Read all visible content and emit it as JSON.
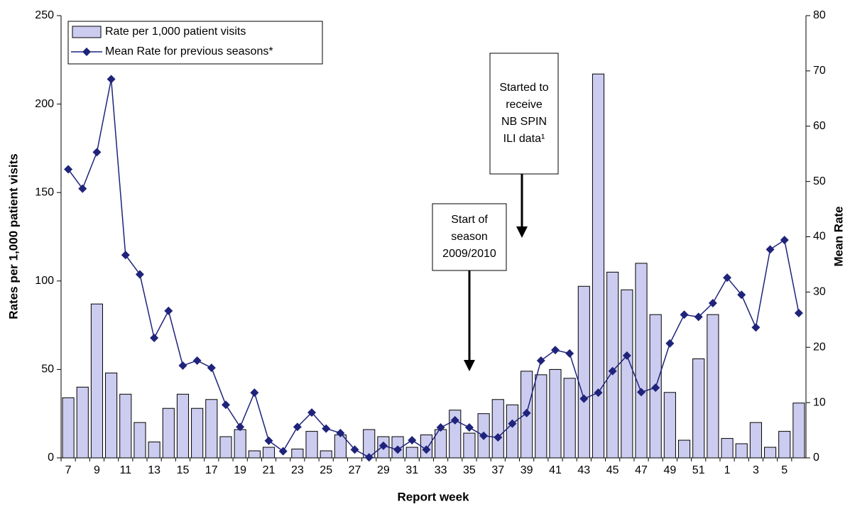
{
  "chart_data": {
    "type": "bar-line",
    "x_label": "Report week",
    "y_label": "Rates per 1,000 patient visits",
    "y2_label": "Mean Rate",
    "categories": [
      "7",
      null,
      "9",
      null,
      "11",
      null,
      "13",
      null,
      "15",
      null,
      "17",
      null,
      "19",
      null,
      "21",
      null,
      "23",
      null,
      "25",
      null,
      "27",
      null,
      "29",
      null,
      "31",
      null,
      "33",
      null,
      "35",
      null,
      "37",
      null,
      "39",
      null,
      "41",
      null,
      "43",
      null,
      "45",
      null,
      "47",
      null,
      "49",
      null,
      "51",
      null,
      "1",
      null,
      "3",
      null,
      "5",
      null
    ],
    "series": [
      {
        "name": "Rate per 1,000 patient visits",
        "color": "#ccccf0",
        "kind": "bar",
        "values": [
          34,
          40,
          87,
          48,
          36,
          20,
          9,
          28,
          36,
          28,
          33,
          12,
          16,
          4,
          6,
          0,
          5,
          15,
          4,
          13,
          0,
          16,
          12,
          12,
          6,
          13,
          16,
          27,
          14,
          25,
          33,
          30,
          49,
          47,
          50,
          45,
          97,
          217,
          105,
          95,
          110,
          81,
          37,
          10,
          56,
          81,
          11,
          8,
          20,
          6,
          15,
          31
        ]
      },
      {
        "name": "Mean Rate for previous seasons*",
        "color": "#1f237a",
        "kind": "line",
        "axis": "y2",
        "values": [
          52.2,
          48.7,
          55.3,
          68.5,
          36.7,
          33.2,
          21.7,
          26.6,
          16.7,
          17.6,
          16.3,
          9.6,
          5.6,
          11.8,
          3.1,
          1.2,
          5.6,
          8.2,
          5.3,
          4.5,
          1.5,
          0.1,
          2.2,
          1.5,
          3.2,
          1.5,
          5.5,
          6.8,
          5.5,
          4.0,
          3.7,
          6.2,
          8.1,
          17.6,
          19.5,
          18.9,
          10.7,
          11.8,
          15.7,
          18.5,
          11.9,
          12.7,
          20.7,
          25.9,
          25.5,
          28.0,
          32.6,
          29.5,
          23.6,
          37.7,
          39.4,
          26.2
        ]
      }
    ],
    "ylim": [
      0,
      250
    ],
    "yticks": [
      0,
      50,
      100,
      150,
      200,
      250
    ],
    "y2lim": [
      0,
      80
    ],
    "y2ticks": [
      0,
      10,
      20,
      30,
      40,
      50,
      60,
      70,
      80
    ],
    "legend": "upper left",
    "annotations": [
      {
        "lines": [
          "Started to",
          "receive",
          "NB SPIN",
          "ILI data¹"
        ]
      },
      {
        "lines": [
          "Start of",
          "season",
          "2009/2010"
        ]
      }
    ]
  }
}
